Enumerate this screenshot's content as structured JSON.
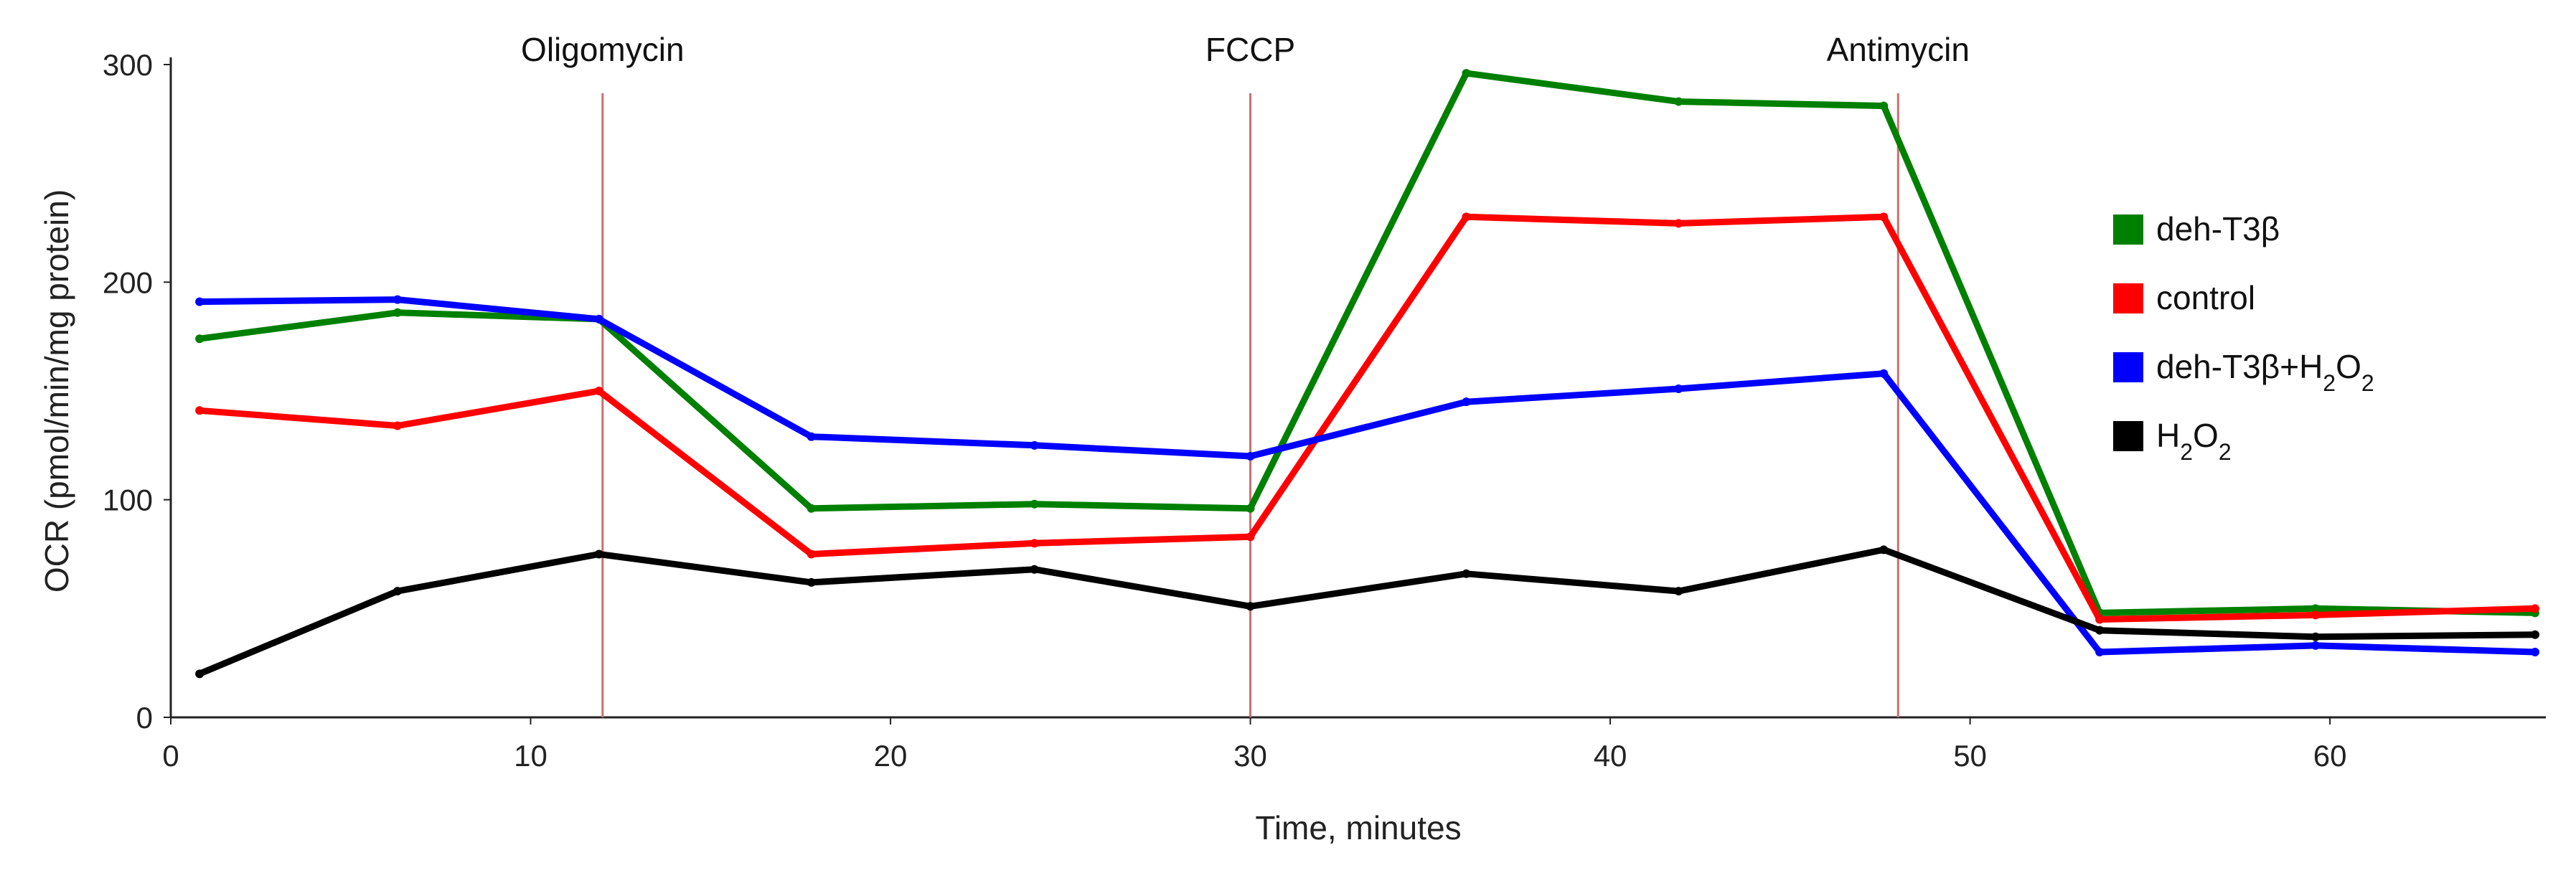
{
  "chart_data": {
    "type": "line",
    "title": "",
    "xlabel": "Time, minutes",
    "ylabel": "OCR (pmol/min/mg protein)",
    "xlim": [
      0,
      66
    ],
    "ylim": [
      0,
      300
    ],
    "xticks": [
      0,
      10,
      20,
      30,
      40,
      50,
      60
    ],
    "yticks": [
      0,
      100,
      200,
      300
    ],
    "x": [
      0.8,
      6.3,
      11.9,
      17.8,
      24.0,
      30.0,
      36.0,
      41.9,
      47.6,
      53.6,
      59.6,
      65.7
    ],
    "series": [
      {
        "name": "deh-T3β",
        "color": "#008000",
        "values": [
          174,
          186,
          183,
          96,
          98,
          96,
          296,
          283,
          281,
          48,
          50,
          48
        ]
      },
      {
        "name": "control",
        "color": "#ff0000",
        "values": [
          141,
          134,
          150,
          75,
          80,
          83,
          230,
          227,
          230,
          45,
          47,
          50
        ]
      },
      {
        "name": "deh-T3β+H₂O₂",
        "color": "#0000ff",
        "values": [
          191,
          192,
          183,
          129,
          125,
          120,
          145,
          151,
          158,
          30,
          33,
          30
        ]
      },
      {
        "name": "H₂O₂",
        "color": "#000000",
        "values": [
          20,
          58,
          75,
          62,
          68,
          51,
          66,
          58,
          77,
          40,
          37,
          38
        ]
      }
    ],
    "annotations": [
      {
        "text": "Oligomycin",
        "x": 12
      },
      {
        "text": "FCCP",
        "x": 30
      },
      {
        "text": "Antimycin",
        "x": 48
      }
    ],
    "annotation_line_color": "#c87070",
    "legend_position": "right"
  }
}
